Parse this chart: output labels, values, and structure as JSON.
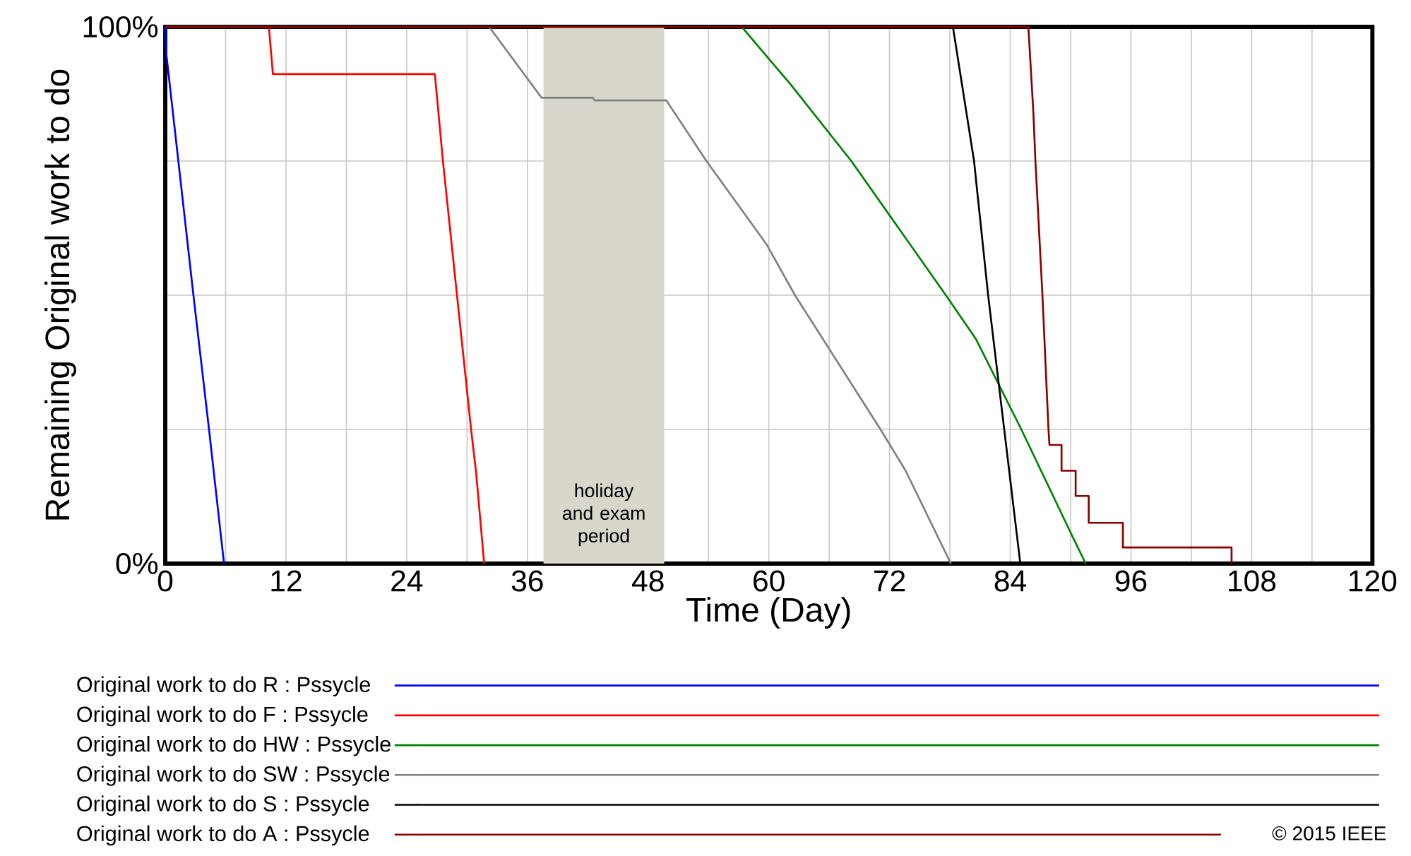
{
  "chart_data": {
    "type": "line",
    "xlabel": "Time (Day)",
    "ylabel": "Remaining Original work to do",
    "xlim": [
      0,
      120
    ],
    "ylim": [
      0,
      100
    ],
    "xticks": [
      0,
      {
        "value": 6,
        "label": null
      },
      12,
      {
        "value": 18,
        "label": null
      },
      24,
      {
        "value": 30,
        "label": null
      },
      36,
      {
        "value": 42,
        "label": null
      },
      48,
      {
        "value": 54,
        "label": null
      },
      60,
      {
        "value": 66,
        "label": null
      },
      72,
      {
        "value": 78,
        "label": null
      },
      84,
      {
        "value": 90,
        "label": null
      },
      96,
      {
        "value": 102,
        "label": null
      },
      108,
      {
        "value": 114,
        "label": null
      },
      120
    ],
    "yticks": [
      {
        "value": 0,
        "label": "0%"
      },
      {
        "value": 25,
        "label": null
      },
      {
        "value": 50,
        "label": null
      },
      {
        "value": 75,
        "label": null
      },
      {
        "value": 100,
        "label": "100%"
      }
    ],
    "grid": true,
    "legend": "bottom",
    "bands": [
      {
        "axis": "x",
        "from": 37.6,
        "to": 49.6,
        "label": "holiday and exam period",
        "color": "#d9d7cb"
      }
    ],
    "annotations": [
      "© 2015 IEEE"
    ],
    "series": [
      {
        "name": "Original work to do R : Pssycle",
        "color": "#0000ff",
        "x": [
          0,
          0.1,
          1.3,
          2.8,
          4.35,
          5.84
        ],
        "values": [
          100,
          95,
          75,
          50,
          25,
          0
        ]
      },
      {
        "name": "Original work to do F : Pssycle",
        "color": "#ff0000",
        "x": [
          0,
          10.3,
          10.7,
          26.8,
          27.6,
          29.0,
          30.4,
          30.9,
          31.7
        ],
        "values": [
          100,
          100,
          91.2,
          91.2,
          75,
          50,
          25,
          17,
          0
        ]
      },
      {
        "name": "Original work to do HW : Pssycle",
        "color": "#008000",
        "x": [
          0,
          57.3,
          59.8,
          62.2,
          68.2,
          77.6,
          80.6,
          85.1,
          90.2,
          91.5
        ],
        "values": [
          100,
          100,
          94.5,
          89.2,
          75,
          50,
          41.8,
          25,
          5,
          0
        ]
      },
      {
        "name": "Original work to do SW : Pssycle",
        "color": "#808080",
        "x": [
          0,
          32.2,
          37.4,
          42.5,
          42.7,
          49.8,
          53.8,
          59.8,
          62.6,
          71.1,
          73.6,
          78.1
        ],
        "values": [
          100,
          100,
          86.8,
          86.8,
          86.3,
          86.3,
          75,
          59.4,
          50,
          25,
          17.3,
          0
        ]
      },
      {
        "name": "Original work to do S : Pssycle",
        "color": "#000000",
        "x": [
          0,
          78.3,
          80.4,
          81.8,
          83.4,
          85.0
        ],
        "values": [
          100,
          100,
          75,
          50,
          25,
          0
        ]
      },
      {
        "name": "Original work to do A : Pssycle",
        "color": "#8b0000",
        "x": [
          0,
          85.8,
          86.3,
          86.5,
          87.2,
          87.8,
          87.9,
          89.1,
          89.1,
          90.5,
          90.5,
          91.8,
          91.8,
          95.2,
          95.2,
          106.0,
          106.0
        ],
        "values": [
          100,
          100,
          84,
          75,
          50,
          25,
          22.1,
          22.1,
          17.3,
          17.3,
          12.6,
          12.6,
          7.6,
          7.6,
          3,
          3,
          0
        ]
      }
    ]
  }
}
